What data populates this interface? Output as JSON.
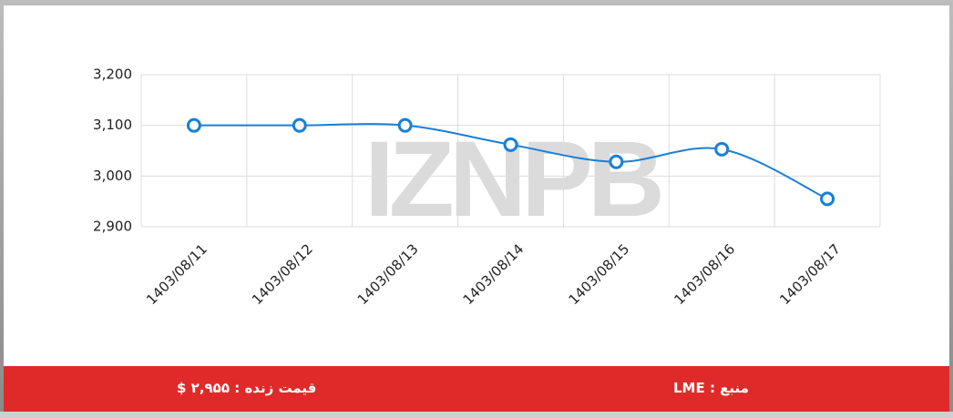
{
  "chart_data": {
    "type": "line",
    "watermark": "IZNPB",
    "categories": [
      "1403/08/11",
      "1403/08/12",
      "1403/08/13",
      "1403/08/14",
      "1403/08/15",
      "1403/08/16",
      "1403/08/17"
    ],
    "series": [
      {
        "color": "#1a7fd6",
        "values": [
          3100,
          3100,
          3100,
          3062,
          3028,
          3053,
          2955
        ]
      }
    ],
    "ylim": [
      2900,
      3200
    ],
    "yticks": [
      {
        "value": 2900,
        "label": "2,900"
      },
      {
        "value": 3000,
        "label": "3,000"
      },
      {
        "value": 3100,
        "label": "3,100"
      },
      {
        "value": 3200,
        "label": "3,200"
      }
    ],
    "grid": true
  },
  "footer": {
    "source": "منبع : LME",
    "live_price": "قیمت زنده : ۲,۹۵۵ $"
  }
}
